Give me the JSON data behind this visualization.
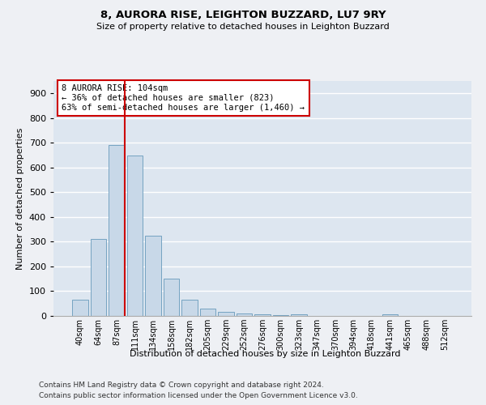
{
  "title1": "8, AURORA RISE, LEIGHTON BUZZARD, LU7 9RY",
  "title2": "Size of property relative to detached houses in Leighton Buzzard",
  "xlabel": "Distribution of detached houses by size in Leighton Buzzard",
  "ylabel": "Number of detached properties",
  "bins": [
    "40sqm",
    "64sqm",
    "87sqm",
    "111sqm",
    "134sqm",
    "158sqm",
    "182sqm",
    "205sqm",
    "229sqm",
    "252sqm",
    "276sqm",
    "300sqm",
    "323sqm",
    "347sqm",
    "370sqm",
    "394sqm",
    "418sqm",
    "441sqm",
    "465sqm",
    "488sqm",
    "512sqm"
  ],
  "values": [
    65,
    310,
    690,
    650,
    325,
    150,
    65,
    30,
    15,
    10,
    5,
    2,
    5,
    1,
    1,
    1,
    1,
    8,
    1,
    1,
    0
  ],
  "bar_color": "#c8d8e8",
  "bar_edge_color": "#6699bb",
  "red_line_color": "#cc0000",
  "annotation_text": "8 AURORA RISE: 104sqm\n← 36% of detached houses are smaller (823)\n63% of semi-detached houses are larger (1,460) →",
  "annotation_box_color": "#ffffff",
  "annotation_box_edge": "#cc0000",
  "footer1": "Contains HM Land Registry data © Crown copyright and database right 2024.",
  "footer2": "Contains public sector information licensed under the Open Government Licence v3.0.",
  "ylim": [
    0,
    950
  ],
  "yticks": [
    0,
    100,
    200,
    300,
    400,
    500,
    600,
    700,
    800,
    900
  ],
  "background_color": "#dde6f0",
  "fig_background_color": "#eef0f4",
  "grid_color": "#ffffff",
  "red_line_x": 2.45
}
